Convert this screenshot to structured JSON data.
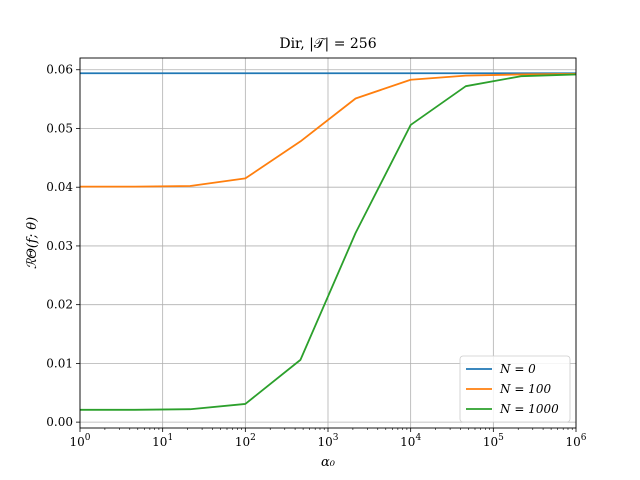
{
  "chart_data": {
    "type": "line",
    "title": "Dir, |𝒯| = 256",
    "xlabel": "α₀",
    "ylabel": "ℛΘ(f; θ)",
    "xscale": "log",
    "xlim": [
      1,
      1000000
    ],
    "ylim": [
      -0.001,
      0.062
    ],
    "grid": true,
    "legend_position": "bottom-right",
    "x_ticks": [
      {
        "value": 1,
        "base": "10",
        "exp": "0"
      },
      {
        "value": 10,
        "base": "10",
        "exp": "1"
      },
      {
        "value": 100,
        "base": "10",
        "exp": "2"
      },
      {
        "value": 1000,
        "base": "10",
        "exp": "3"
      },
      {
        "value": 10000,
        "base": "10",
        "exp": "4"
      },
      {
        "value": 100000,
        "base": "10",
        "exp": "5"
      },
      {
        "value": 1000000,
        "base": "10",
        "exp": "6"
      }
    ],
    "y_ticks": [
      {
        "value": 0.0,
        "label": "0.00"
      },
      {
        "value": 0.01,
        "label": "0.01"
      },
      {
        "value": 0.02,
        "label": "0.02"
      },
      {
        "value": 0.03,
        "label": "0.03"
      },
      {
        "value": 0.04,
        "label": "0.04"
      },
      {
        "value": 0.05,
        "label": "0.05"
      },
      {
        "value": 0.06,
        "label": "0.06"
      }
    ],
    "series": [
      {
        "name": "N = 0",
        "color": "#1f77b4",
        "x": [
          1,
          1000000
        ],
        "y": [
          0.0594,
          0.0594
        ]
      },
      {
        "name": "N = 100",
        "color": "#ff7f0e",
        "x": [
          1,
          4.6,
          21.5,
          100,
          464,
          2154,
          10000,
          46416,
          215443,
          1000000
        ],
        "y": [
          0.0401,
          0.0401,
          0.0402,
          0.0415,
          0.0478,
          0.0551,
          0.0583,
          0.059,
          0.0592,
          0.0593
        ]
      },
      {
        "name": "N = 1000",
        "color": "#2ca02c",
        "x": [
          1,
          4.6,
          21.5,
          100,
          464,
          2154,
          10000,
          46416,
          215443,
          1000000
        ],
        "y": [
          0.0021,
          0.0021,
          0.0022,
          0.0031,
          0.0106,
          0.0322,
          0.0506,
          0.0572,
          0.0589,
          0.0592
        ]
      }
    ]
  }
}
